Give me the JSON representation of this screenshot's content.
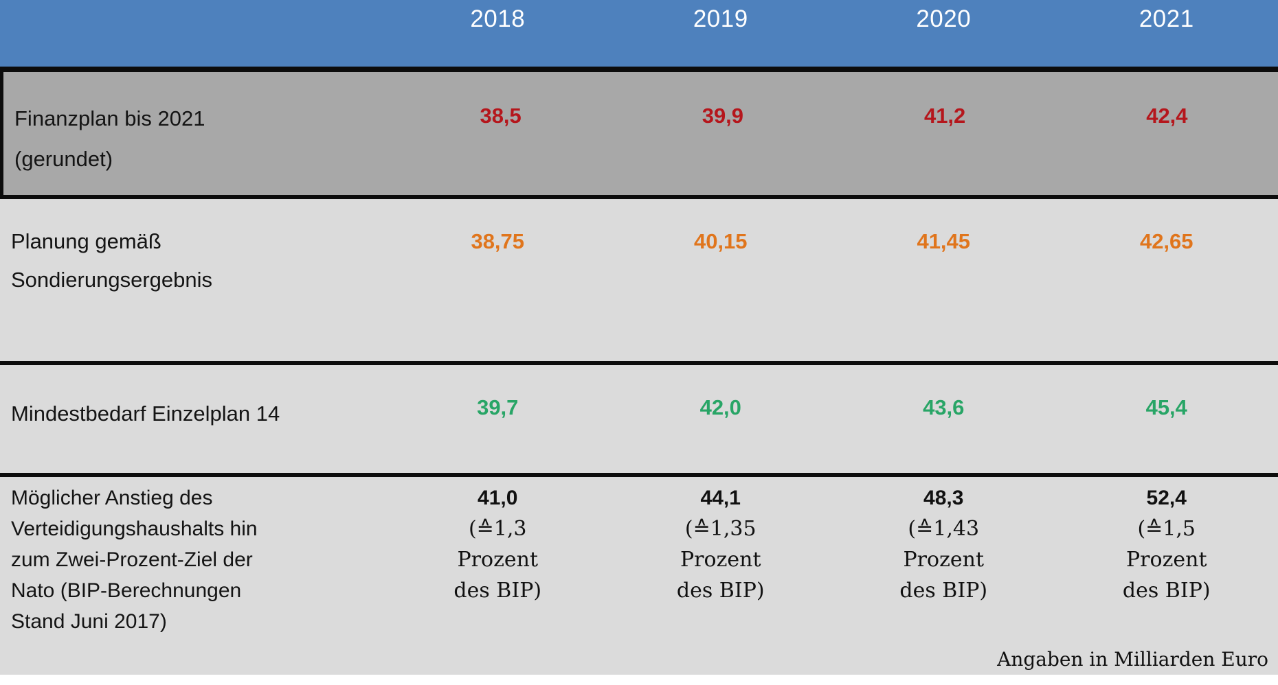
{
  "table": {
    "columns": [
      "2018",
      "2019",
      "2020",
      "2021"
    ],
    "rows": [
      {
        "label": "Finanzplan bis 2021\n(gerundet)",
        "values": [
          "38,5",
          "39,9",
          "41,2",
          "42,4"
        ],
        "value_color": "#b5161c"
      },
      {
        "label": "Planung gemäß\nSondierungsergebnis",
        "values": [
          "38,75",
          "40,15",
          "41,45",
          "42,65"
        ],
        "value_color": "#e0751c"
      },
      {
        "label": "Mindestbedarf Einzelplan 14",
        "values": [
          "39,7",
          "42,0",
          "43,6",
          "45,4"
        ],
        "value_color": "#28a566"
      },
      {
        "label": "Möglicher Anstieg des\nVerteidigungshaushalts hin\nzum Zwei-Prozent-Ziel der\nNato (BIP-Berechnungen\nStand Juni 2017)",
        "cells": [
          {
            "amount": "41,0",
            "detail": "(≙1,3\nProzent\ndes BIP)"
          },
          {
            "amount": "44,1",
            "detail": "(≙1,35\nProzent\ndes BIP)"
          },
          {
            "amount": "48,3",
            "detail": "(≙1,43\nProzent\ndes BIP)"
          },
          {
            "amount": "52,4",
            "detail": "(≙1,5\nProzent\ndes BIP)"
          }
        ],
        "value_color": "#111111"
      }
    ],
    "footnote": "Angaben in Milliarden Euro"
  },
  "colors": {
    "header_bg": "#4e81bd",
    "header_text": "#ffffff",
    "row1_bg": "#a8a8a8",
    "rows_bg": "#dbdbdb",
    "divider": "#0c0c0c",
    "red": "#b5161c",
    "orange": "#e0751c",
    "green": "#28a566"
  },
  "chart_data": {
    "type": "table",
    "title": "",
    "categories": [
      "2018",
      "2019",
      "2020",
      "2021"
    ],
    "series": [
      {
        "name": "Finanzplan bis 2021 (gerundet)",
        "values": [
          38.5,
          39.9,
          41.2,
          42.4
        ],
        "color": "#b5161c"
      },
      {
        "name": "Planung gemäß Sondierungsergebnis",
        "values": [
          38.75,
          40.15,
          41.45,
          42.65
        ],
        "color": "#e0751c"
      },
      {
        "name": "Mindestbedarf Einzelplan 14",
        "values": [
          39.7,
          42.0,
          43.6,
          45.4
        ],
        "color": "#28a566"
      },
      {
        "name": "Möglicher Anstieg des Verteidigungshaushalts hin zum Zwei-Prozent-Ziel der Nato (BIP-Berechnungen Stand Juni 2017)",
        "values": [
          41.0,
          44.1,
          48.3,
          52.4
        ],
        "gdp_share_percent": [
          1.3,
          1.35,
          1.43,
          1.5
        ],
        "color": "#111111"
      }
    ],
    "unit": "Milliarden Euro",
    "note": "Angaben in Milliarden Euro",
    "legend_position": "none",
    "grid": false
  }
}
